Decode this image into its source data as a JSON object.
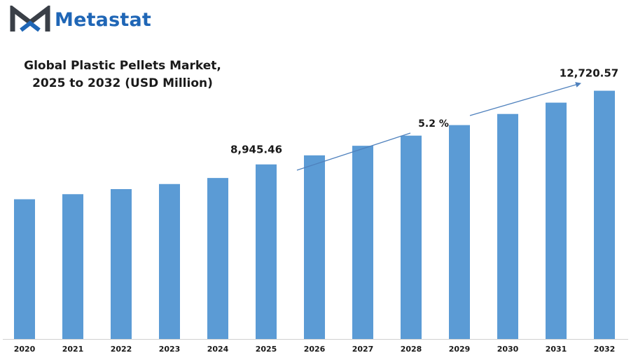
{
  "brand": {
    "name": "Metastat",
    "icon": "metastat-m-logo-icon",
    "colors": {
      "dark": "#3a3f47",
      "blue": "#1f66b6"
    }
  },
  "chart_data": {
    "type": "bar",
    "title_lines": [
      "Global Plastic Pellets Market,",
      "2025 to 2032 (USD Million)"
    ],
    "xlabel": "",
    "ylabel": "",
    "categories": [
      "2020",
      "2021",
      "2022",
      "2023",
      "2024",
      "2025",
      "2026",
      "2027",
      "2028",
      "2029",
      "2030",
      "2031",
      "2032"
    ],
    "values": [
      7160,
      7420,
      7680,
      7940,
      8250,
      8945.46,
      9410,
      9900,
      10420,
      10960,
      11530,
      12110,
      12720.57
    ],
    "ylim": [
      0,
      13500
    ],
    "grid": false,
    "legend": "none",
    "bar_color": "#5b9bd5",
    "annotations": {
      "start_label": "8,945.46",
      "end_label": "12,720.57",
      "cagr_label": "5.2  %",
      "arrow_color": "#4f81bd"
    }
  }
}
